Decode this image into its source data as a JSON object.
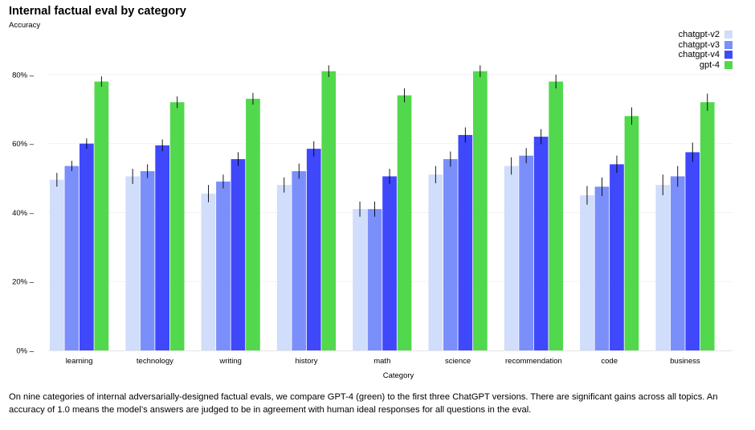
{
  "chart_data": {
    "type": "bar",
    "title": "Internal factual eval by category",
    "ylabel": "Accuracy",
    "xlabel": "Category",
    "ylim": [
      0,
      0.9
    ],
    "yticks": [
      0,
      0.2,
      0.4,
      0.6,
      0.8
    ],
    "ytick_labels": [
      "0% –",
      "20% –",
      "40% –",
      "60% –",
      "80% –"
    ],
    "categories": [
      "learning",
      "technology",
      "writing",
      "history",
      "math",
      "science",
      "recommendation",
      "code",
      "business"
    ],
    "series": [
      {
        "name": "chatgpt-v2",
        "color": "#d0ddfb",
        "values": [
          0.495,
          0.505,
          0.455,
          0.48,
          0.41,
          0.51,
          0.535,
          0.45,
          0.48
        ],
        "errors": [
          0.02,
          0.022,
          0.025,
          0.022,
          0.022,
          0.025,
          0.025,
          0.027,
          0.03
        ]
      },
      {
        "name": "chatgpt-v3",
        "color": "#7b8ffb",
        "values": [
          0.535,
          0.52,
          0.49,
          0.52,
          0.41,
          0.555,
          0.565,
          0.475,
          0.505
        ],
        "errors": [
          0.015,
          0.02,
          0.02,
          0.022,
          0.022,
          0.022,
          0.022,
          0.027,
          0.03
        ]
      },
      {
        "name": "chatgpt-v4",
        "color": "#3f48fb",
        "values": [
          0.6,
          0.595,
          0.555,
          0.585,
          0.505,
          0.625,
          0.62,
          0.54,
          0.575
        ],
        "errors": [
          0.015,
          0.017,
          0.02,
          0.022,
          0.022,
          0.022,
          0.022,
          0.025,
          0.028
        ]
      },
      {
        "name": "gpt-4",
        "color": "#52d84c",
        "values": [
          0.78,
          0.72,
          0.73,
          0.81,
          0.74,
          0.81,
          0.78,
          0.68,
          0.72
        ],
        "errors": [
          0.015,
          0.017,
          0.017,
          0.017,
          0.02,
          0.017,
          0.02,
          0.025,
          0.025
        ]
      }
    ],
    "legend_position": "top-right",
    "grid": true
  },
  "caption": "On nine categories of internal adversarially-designed factual evals, we compare GPT-4 (green) to the first three ChatGPT versions. There are significant gains across all topics. An accuracy of 1.0 means the model’s answers are judged to be in agreement with human ideal responses for all questions in the eval."
}
